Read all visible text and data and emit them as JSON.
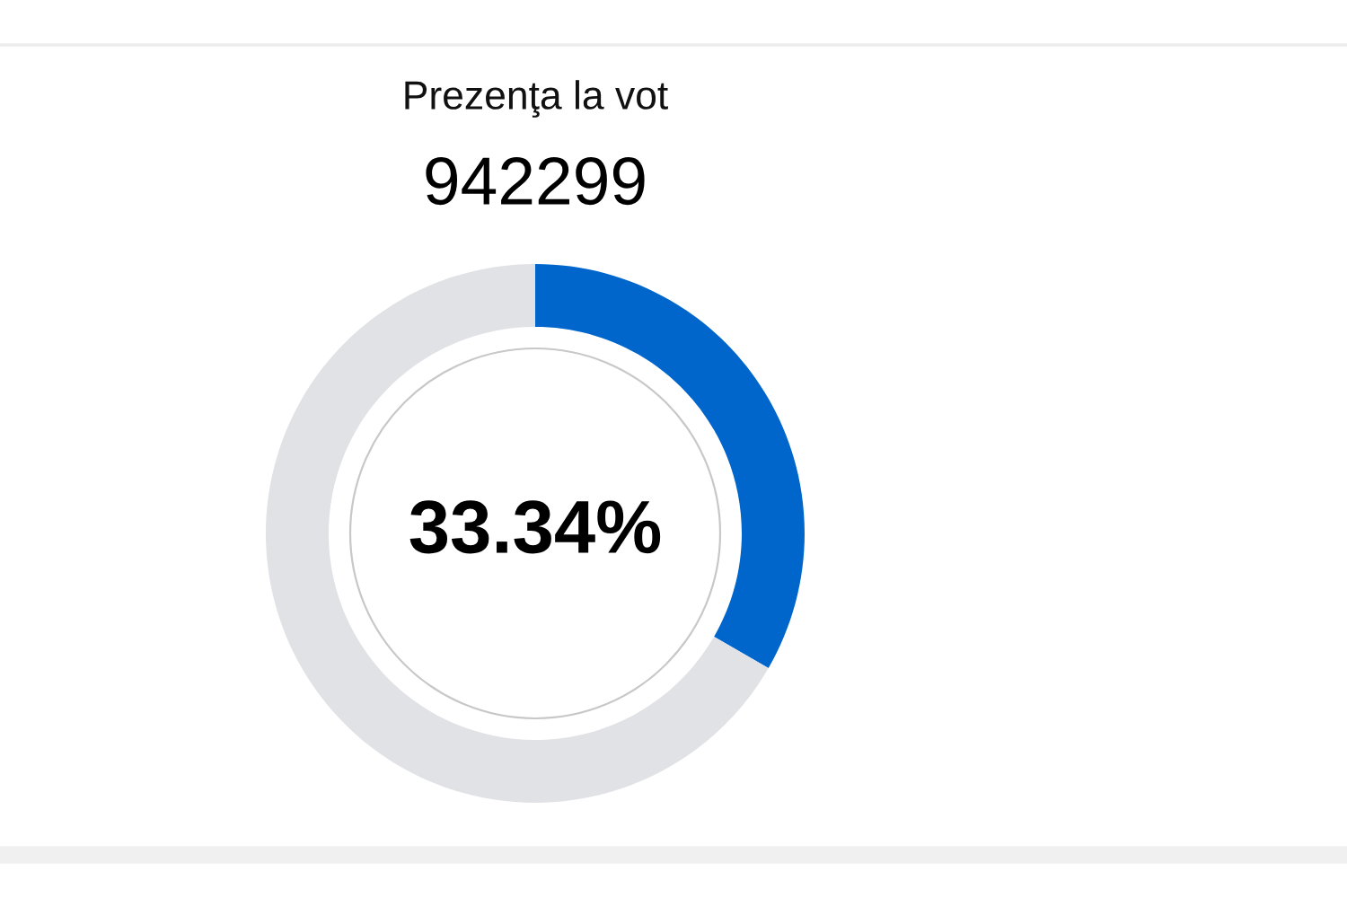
{
  "chart_data": {
    "type": "donut",
    "title": "Prezenţa la vot",
    "subtitle": "942299",
    "categories": [
      null,
      null
    ],
    "values": [
      33.34,
      66.66
    ],
    "colors": [
      "#0066cc",
      "#e1e2e6"
    ],
    "annotations": [
      "33.34%"
    ]
  }
}
